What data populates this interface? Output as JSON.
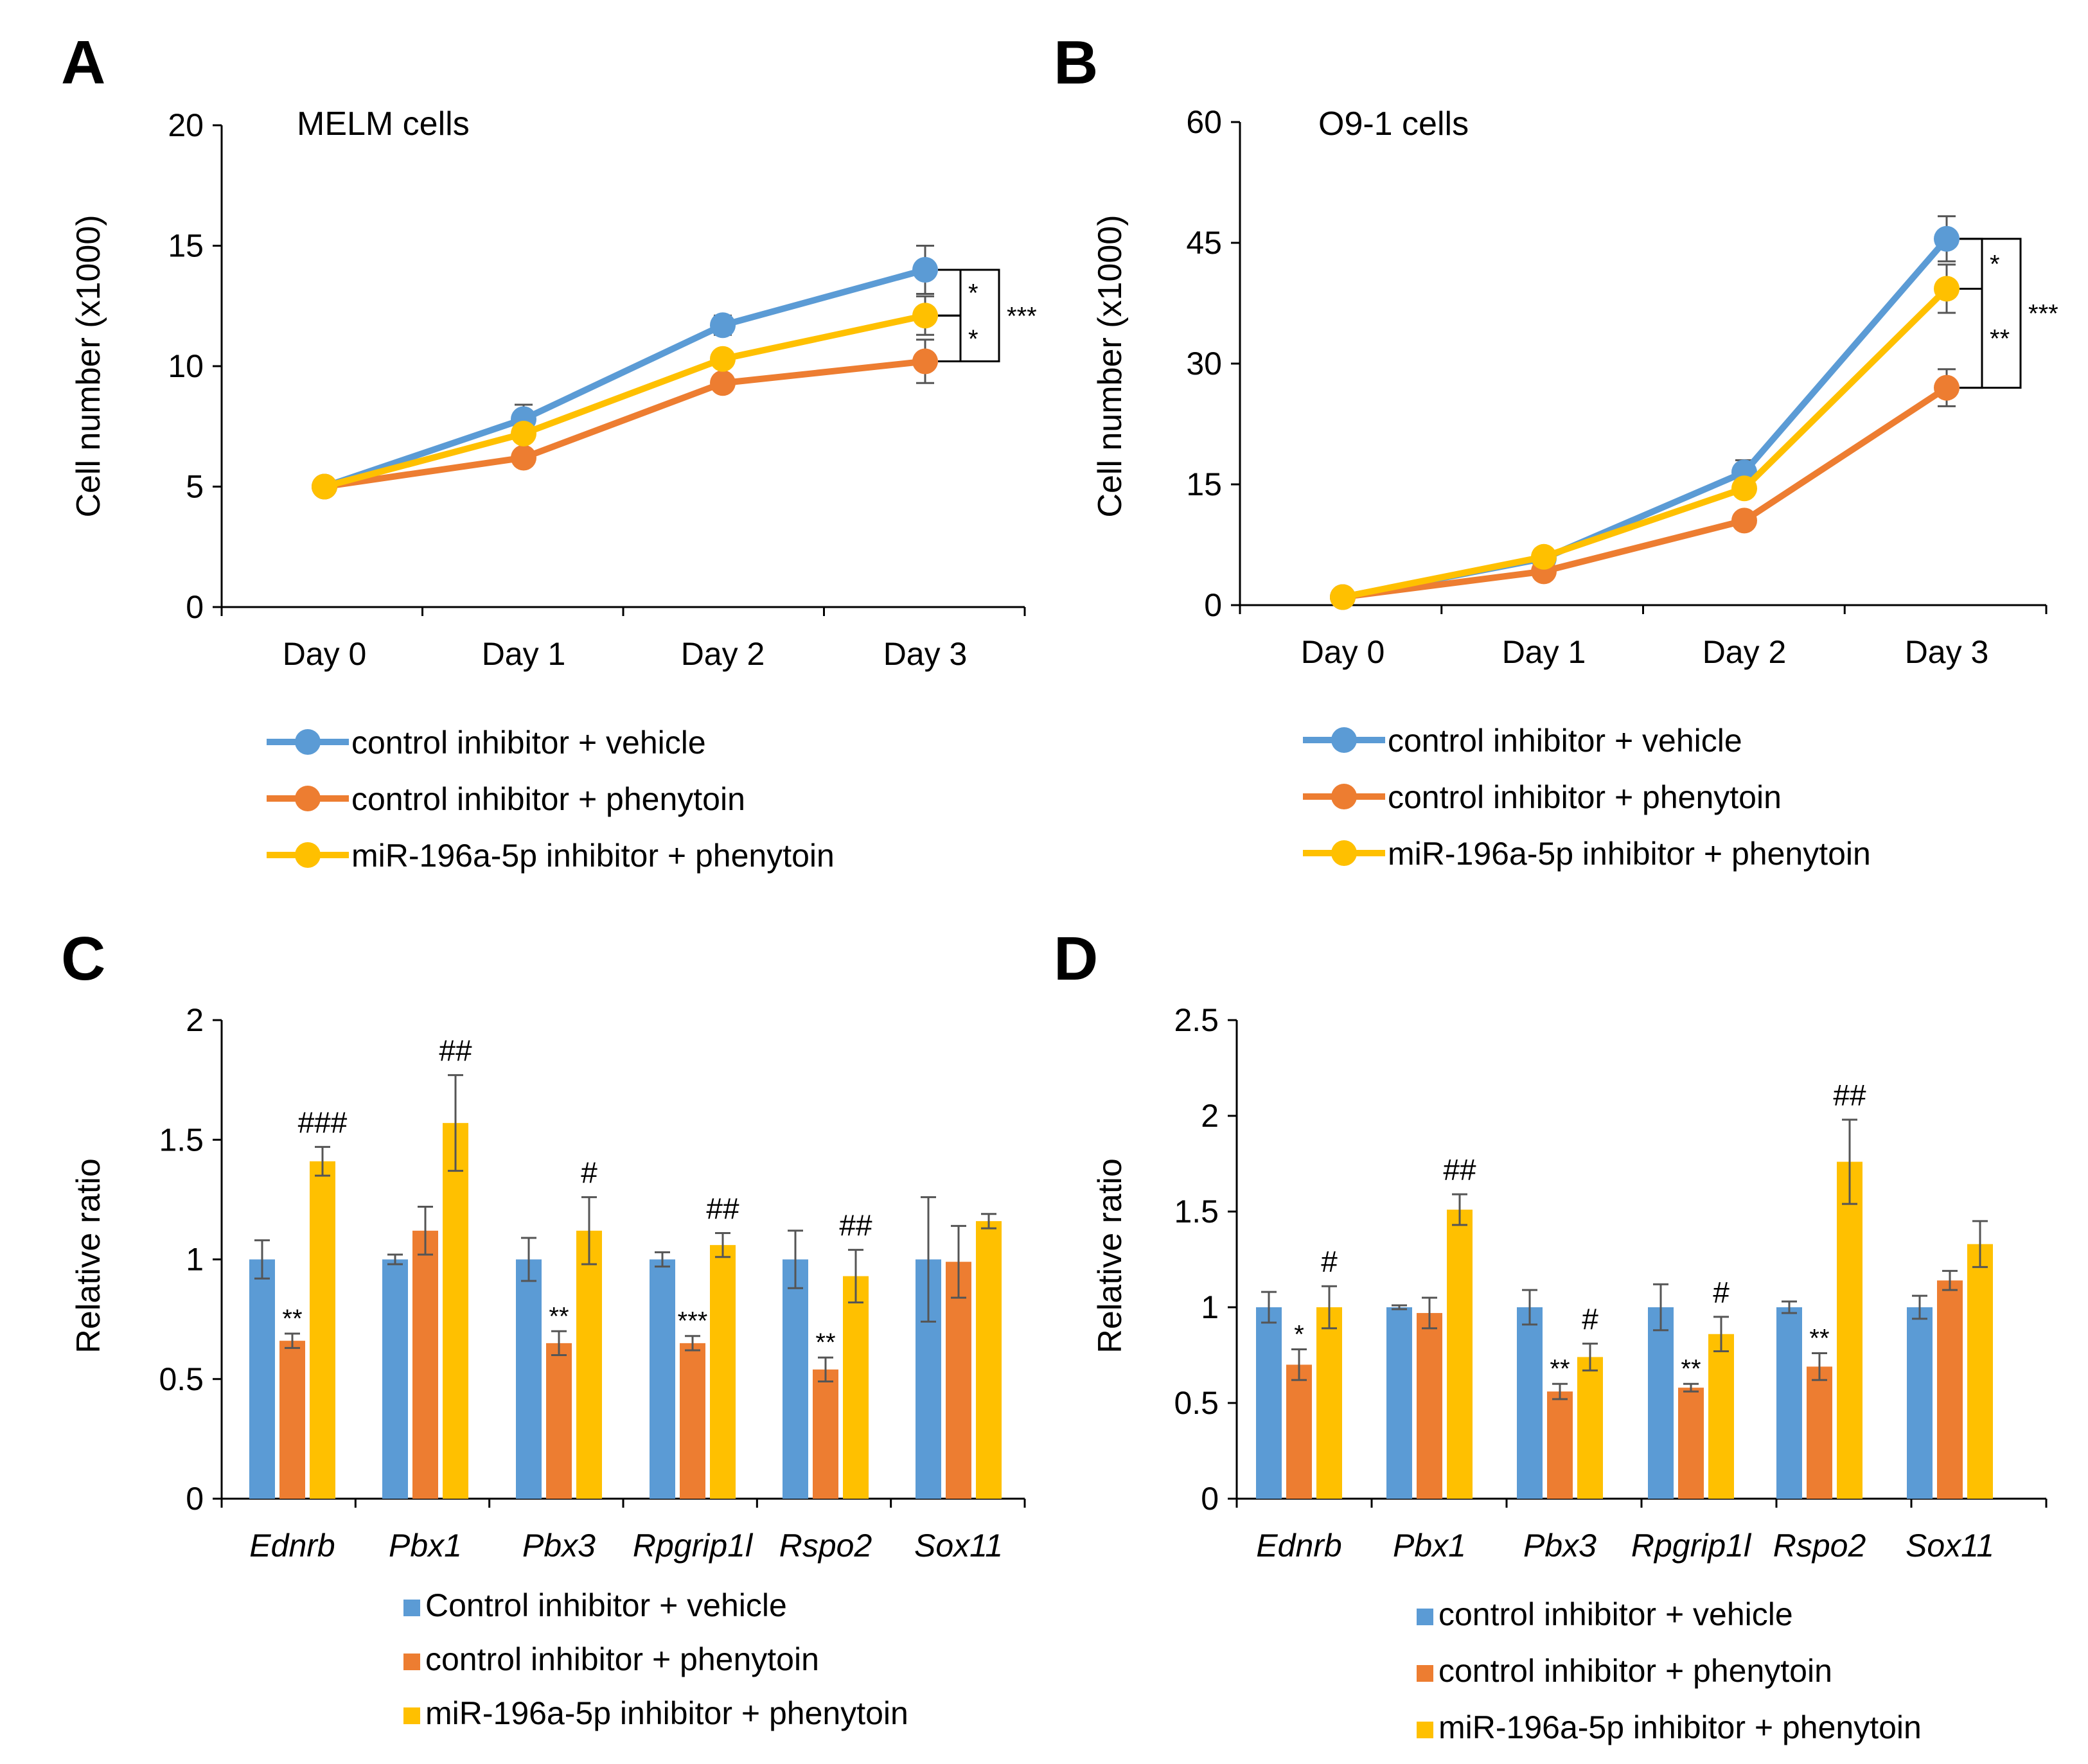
{
  "colors": {
    "blue": "#5B9BD5",
    "orange": "#ED7D31",
    "yellow": "#FFC000",
    "axis": "#000000",
    "error": "#555555"
  },
  "chart_data": [
    {
      "id": "A",
      "panel": "A",
      "type": "line",
      "title": "MELM cells",
      "ylabel": "Cell number (x1000)",
      "xlabel": "",
      "categories": [
        "Day 0",
        "Day 1",
        "Day 2",
        "Day 3"
      ],
      "ylim": [
        0,
        20
      ],
      "yticks": [
        0,
        5,
        10,
        15,
        20
      ],
      "series": [
        {
          "name": "control inhibitor + vehicle",
          "color": "#5B9BD5",
          "values": [
            5.0,
            7.8,
            11.7,
            14.0
          ],
          "errors": [
            0.0,
            0.6,
            0.4,
            1.0
          ]
        },
        {
          "name": "control inhibitor + phenytoin",
          "color": "#ED7D31",
          "values": [
            5.0,
            6.2,
            9.3,
            10.2
          ],
          "errors": [
            0.0,
            0.2,
            0.3,
            0.9
          ]
        },
        {
          "name": "miR-196a-5p inhibitor + phenytoin",
          "color": "#FFC000",
          "values": [
            5.0,
            7.2,
            10.3,
            12.1
          ],
          "errors": [
            0.0,
            0.3,
            0.3,
            0.8
          ]
        }
      ],
      "significance": [
        {
          "from": 0,
          "to": 2,
          "label": "*"
        },
        {
          "from": 2,
          "to": 1,
          "label": "*"
        },
        {
          "from": 0,
          "to": 1,
          "label": "***"
        }
      ]
    },
    {
      "id": "B",
      "panel": "B",
      "type": "line",
      "title": "O9-1 cells",
      "ylabel": "Cell number (x1000)",
      "xlabel": "",
      "categories": [
        "Day 0",
        "Day 1",
        "Day 2",
        "Day 3"
      ],
      "ylim": [
        0,
        60
      ],
      "yticks": [
        0,
        15,
        30,
        45,
        60
      ],
      "series": [
        {
          "name": "control inhibitor + vehicle",
          "color": "#5B9BD5",
          "values": [
            1.0,
            5.8,
            16.5,
            45.5
          ],
          "errors": [
            0.0,
            0.4,
            1.5,
            2.8
          ]
        },
        {
          "name": "control inhibitor + phenytoin",
          "color": "#ED7D31",
          "values": [
            1.0,
            4.2,
            10.5,
            27.0
          ],
          "errors": [
            0.0,
            0.3,
            0.6,
            2.3
          ]
        },
        {
          "name": "miR-196a-5p inhibitor + phenytoin",
          "color": "#FFC000",
          "values": [
            1.0,
            6.0,
            14.5,
            39.3
          ],
          "errors": [
            0.0,
            0.4,
            0.9,
            3.0
          ]
        }
      ],
      "significance": [
        {
          "from": 0,
          "to": 2,
          "label": "*"
        },
        {
          "from": 2,
          "to": 1,
          "label": "**"
        },
        {
          "from": 0,
          "to": 1,
          "label": "***"
        }
      ]
    },
    {
      "id": "C",
      "panel": "C",
      "type": "bar",
      "title": "",
      "ylabel": "Relative ratio",
      "xlabel": "",
      "categories": [
        "Ednrb",
        "Pbx1",
        "Pbx3",
        "Rpgrip1l",
        "Rspo2",
        "Sox11"
      ],
      "ylim": [
        0,
        2
      ],
      "yticks": [
        "0",
        "0.5",
        "1",
        "1.5",
        "2"
      ],
      "series": [
        {
          "name": "Control inhibitor + vehicle",
          "color": "#5B9BD5",
          "values": [
            1.0,
            1.0,
            1.0,
            1.0,
            1.0,
            1.0
          ],
          "errors": [
            0.08,
            0.02,
            0.09,
            0.03,
            0.12,
            0.26
          ],
          "marks": [
            "",
            "",
            "",
            "",
            "",
            ""
          ]
        },
        {
          "name": "control inhibitor + phenytoin",
          "color": "#ED7D31",
          "values": [
            0.66,
            1.12,
            0.65,
            0.65,
            0.54,
            0.99
          ],
          "errors": [
            0.03,
            0.1,
            0.05,
            0.03,
            0.05,
            0.15
          ],
          "marks": [
            "**",
            "",
            "**",
            "***",
            "**",
            ""
          ]
        },
        {
          "name": "miR-196a-5p inhibitor + phenytoin",
          "color": "#FFC000",
          "values": [
            1.41,
            1.57,
            1.12,
            1.06,
            0.93,
            1.16
          ],
          "errors": [
            0.06,
            0.2,
            0.14,
            0.05,
            0.11,
            0.03
          ],
          "marks": [
            "###",
            "##",
            "#",
            "##",
            "##",
            ""
          ]
        }
      ]
    },
    {
      "id": "D",
      "panel": "D",
      "type": "bar",
      "title": "",
      "ylabel": "Relative ratio",
      "xlabel": "",
      "categories": [
        "Ednrb",
        "Pbx1",
        "Pbx3",
        "Rpgrip1l",
        "Rspo2",
        "Sox11"
      ],
      "ylim": [
        0,
        2.5
      ],
      "yticks": [
        "0",
        "0.5",
        "1",
        "1.5",
        "2",
        "2.5"
      ],
      "series": [
        {
          "name": "control inhibitor + vehicle",
          "color": "#5B9BD5",
          "values": [
            1.0,
            1.0,
            1.0,
            1.0,
            1.0,
            1.0
          ],
          "errors": [
            0.08,
            0.01,
            0.09,
            0.12,
            0.03,
            0.06
          ],
          "marks": [
            "",
            "",
            "",
            "",
            "",
            ""
          ]
        },
        {
          "name": "control inhibitor + phenytoin",
          "color": "#ED7D31",
          "values": [
            0.7,
            0.97,
            0.56,
            0.58,
            0.69,
            1.14
          ],
          "errors": [
            0.08,
            0.08,
            0.04,
            0.02,
            0.07,
            0.05
          ],
          "marks": [
            "*",
            "",
            "**",
            "**",
            "**",
            ""
          ]
        },
        {
          "name": "miR-196a-5p inhibitor + phenytoin",
          "color": "#FFC000",
          "values": [
            1.0,
            1.51,
            0.74,
            0.86,
            1.76,
            1.33
          ],
          "errors": [
            0.11,
            0.08,
            0.07,
            0.09,
            0.22,
            0.12
          ],
          "marks": [
            "#",
            "##",
            "#",
            "#",
            "##",
            ""
          ]
        }
      ]
    }
  ]
}
